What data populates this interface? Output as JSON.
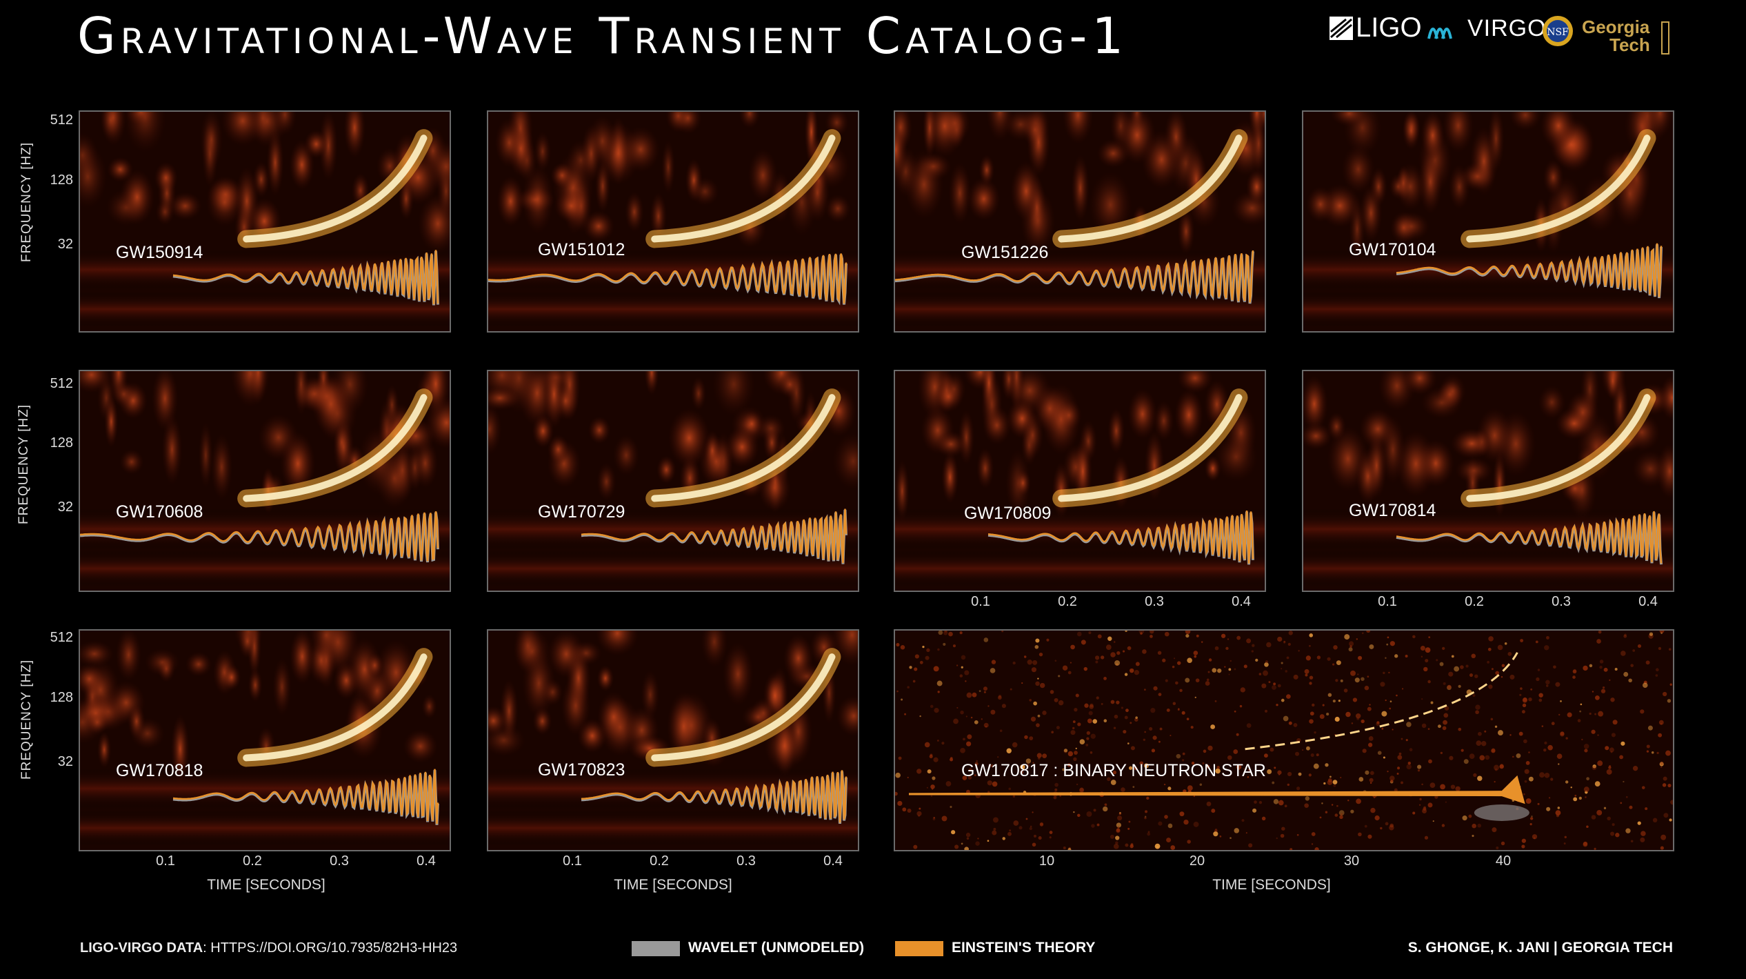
{
  "title": "Gravitational-Wave Transient Catalog-1",
  "logos": [
    "LIGO",
    "VIRGO",
    "NSF",
    "Georgia Tech"
  ],
  "colors": {
    "wavelet": "#9a9a9a",
    "einstein": "#e8912a",
    "background": "#000000"
  },
  "axes": {
    "ylabel": "FREQUENCY  [HZ]",
    "yticks": [
      "512",
      "128",
      "32"
    ],
    "xlabel": "TIME  [SECONDS]",
    "xticks": [
      "0.1",
      "0.2",
      "0.3",
      "0.4"
    ],
    "bns_xticks": [
      "10",
      "20",
      "30",
      "40"
    ]
  },
  "chart_data": [
    {
      "type": "heatmap",
      "event": "GW150914",
      "yscale": "log",
      "yticks": [
        32,
        128,
        512
      ]
    },
    {
      "type": "heatmap",
      "event": "GW151012",
      "yscale": "log",
      "yticks": [
        32,
        128,
        512
      ]
    },
    {
      "type": "heatmap",
      "event": "GW151226",
      "yscale": "log",
      "yticks": [
        32,
        128,
        512
      ]
    },
    {
      "type": "heatmap",
      "event": "GW170104",
      "yscale": "log",
      "yticks": [
        32,
        128,
        512
      ]
    },
    {
      "type": "heatmap",
      "event": "GW170608",
      "yscale": "log",
      "yticks": [
        32,
        128,
        512
      ]
    },
    {
      "type": "heatmap",
      "event": "GW170729",
      "yscale": "log",
      "yticks": [
        32,
        128,
        512
      ]
    },
    {
      "type": "heatmap",
      "event": "GW170809",
      "yscale": "log",
      "yticks": [
        32,
        128,
        512
      ],
      "xticks": [
        0.1,
        0.2,
        0.3,
        0.4
      ]
    },
    {
      "type": "heatmap",
      "event": "GW170814",
      "yscale": "log",
      "yticks": [
        32,
        128,
        512
      ],
      "xticks": [
        0.1,
        0.2,
        0.3,
        0.4
      ]
    },
    {
      "type": "heatmap",
      "event": "GW170818",
      "yscale": "log",
      "yticks": [
        32,
        128,
        512
      ],
      "xticks": [
        0.1,
        0.2,
        0.3,
        0.4
      ]
    },
    {
      "type": "heatmap",
      "event": "GW170823",
      "yscale": "log",
      "yticks": [
        32,
        128,
        512
      ],
      "xticks": [
        0.1,
        0.2,
        0.3,
        0.4
      ]
    },
    {
      "type": "heatmap",
      "event": "GW170817 : BINARY NEUTRON STAR",
      "xticks": [
        10,
        20,
        30,
        40
      ]
    }
  ],
  "legend": {
    "wavelet": "WAVELET (UNMODELED)",
    "einstein": "EINSTEIN'S THEORY"
  },
  "footer": {
    "data_label": "LIGO-VIRGO DATA",
    "data_url": ": HTTPS://DOI.ORG/10.7935/82H3-HH23",
    "credit": "S. GHONGE, K. JANI | GEORGIA TECH"
  }
}
